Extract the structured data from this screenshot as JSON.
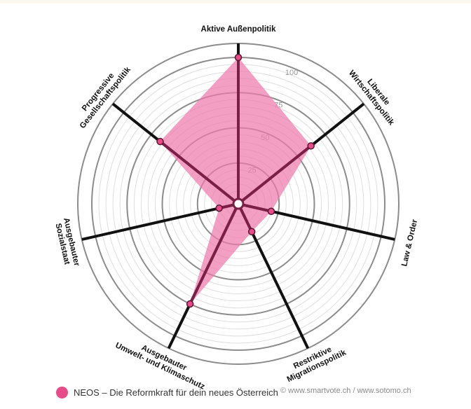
{
  "colors": {
    "series": "#e84b8a",
    "fill": "#ef78ac",
    "spoke_inner": "#7a1f45",
    "spoke_outer": "#111111",
    "grid_major": "#8c8c8c",
    "grid_minor": "#dedede"
  },
  "chart_data": {
    "type": "radar",
    "axes": [
      "Aktive Außenpolitik",
      "Liberale Wirtschaftspolitik",
      "Law & Order",
      "Restriktive Migrationspolitik",
      "Ausgebauter Umwelt- und Klimaschutz",
      "Ausgebauter Sozialstaat",
      "Progressive Gesellschaftspolitik"
    ],
    "axis_label_lines": [
      [
        "Aktive Außenpolitik"
      ],
      [
        "Liberale",
        "Wirtschaftspolitik"
      ],
      [
        "Law & Order"
      ],
      [
        "Restriktive",
        "Migrationspolitik"
      ],
      [
        "Ausgebauter",
        "Umwelt- und Klimaschutz"
      ],
      [
        "Ausgebauter",
        "Sozialstaat"
      ],
      [
        "Progressive",
        "Gesellschaftspolitik"
      ]
    ],
    "rlim": [
      0,
      100
    ],
    "ticks": [
      25,
      50,
      75,
      100
    ],
    "grid": "on",
    "series": [
      {
        "name": "NEOS – Die Reformkraft für dein neues Österreich",
        "values": [
          100,
          62,
          20,
          18,
          75,
          10,
          67
        ]
      }
    ]
  },
  "legend": {
    "label": "NEOS – Die Reformkraft für dein neues Österreich"
  },
  "copyright": "© www.smartvote.ch / www.sotomo.ch"
}
